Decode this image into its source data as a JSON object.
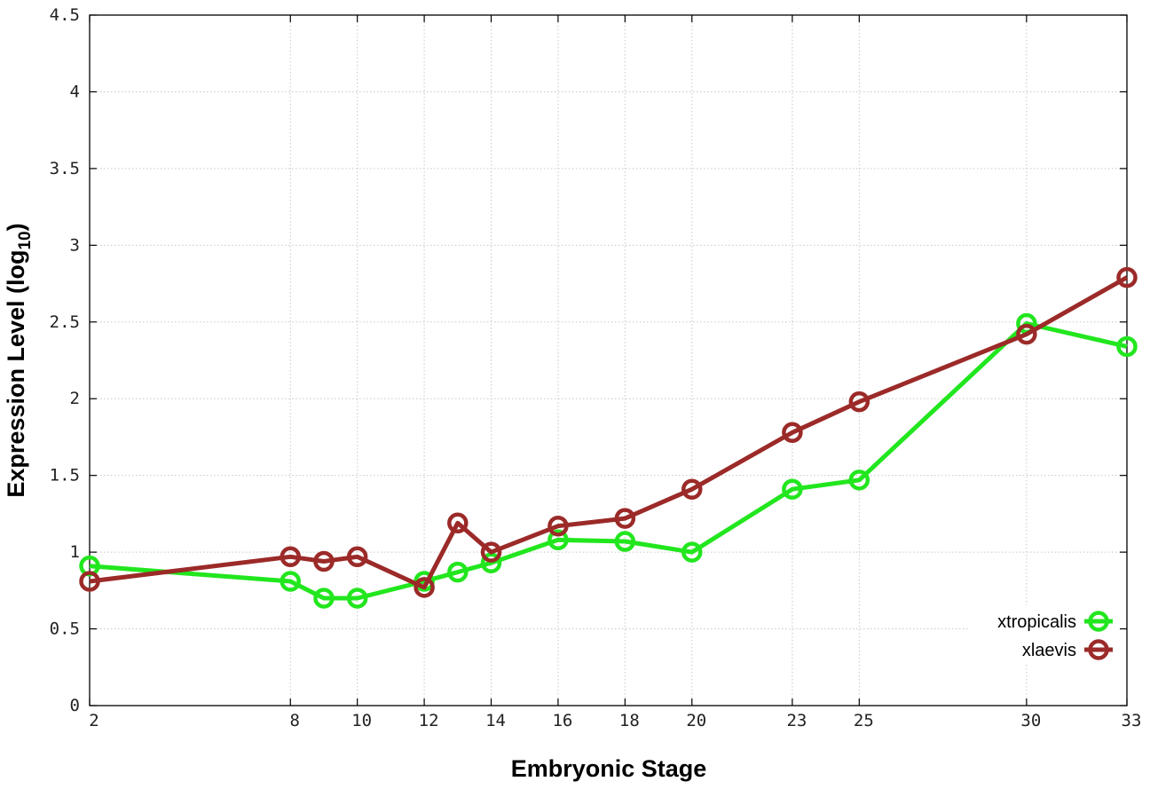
{
  "chart_data": {
    "type": "line",
    "xlabel": "Embryonic Stage",
    "ylabel": {
      "main": "Expression Level (log",
      "sub": "10",
      "close": ")"
    },
    "xlim": [
      2,
      33
    ],
    "ylim": [
      0,
      4.5
    ],
    "xticks": [
      2,
      8,
      10,
      12,
      14,
      16,
      18,
      20,
      23,
      25,
      30,
      33
    ],
    "yticks": [
      "0",
      "0.5",
      "1",
      "1.5",
      "2",
      "2.5",
      "3",
      "3.5",
      "4",
      "4.5"
    ],
    "grid": true,
    "legend_position": "bottom-right",
    "series": [
      {
        "name": "xtropicalis",
        "color": "#22e61e",
        "marker": "circle-open",
        "x": [
          2,
          8,
          9,
          10,
          12,
          13,
          14,
          16,
          18,
          20,
          23,
          25,
          30,
          33
        ],
        "y": [
          0.91,
          0.81,
          0.7,
          0.7,
          0.81,
          0.87,
          0.93,
          1.08,
          1.07,
          1.0,
          1.41,
          1.47,
          2.49,
          2.34
        ]
      },
      {
        "name": "xlaevis",
        "color": "#9b2a28",
        "marker": "circle-open",
        "x": [
          2,
          8,
          9,
          10,
          12,
          13,
          14,
          16,
          18,
          20,
          23,
          25,
          30,
          33
        ],
        "y": [
          0.81,
          0.97,
          0.94,
          0.97,
          0.77,
          1.19,
          1.0,
          1.17,
          1.22,
          1.41,
          1.78,
          1.98,
          2.42,
          2.79
        ]
      }
    ]
  }
}
